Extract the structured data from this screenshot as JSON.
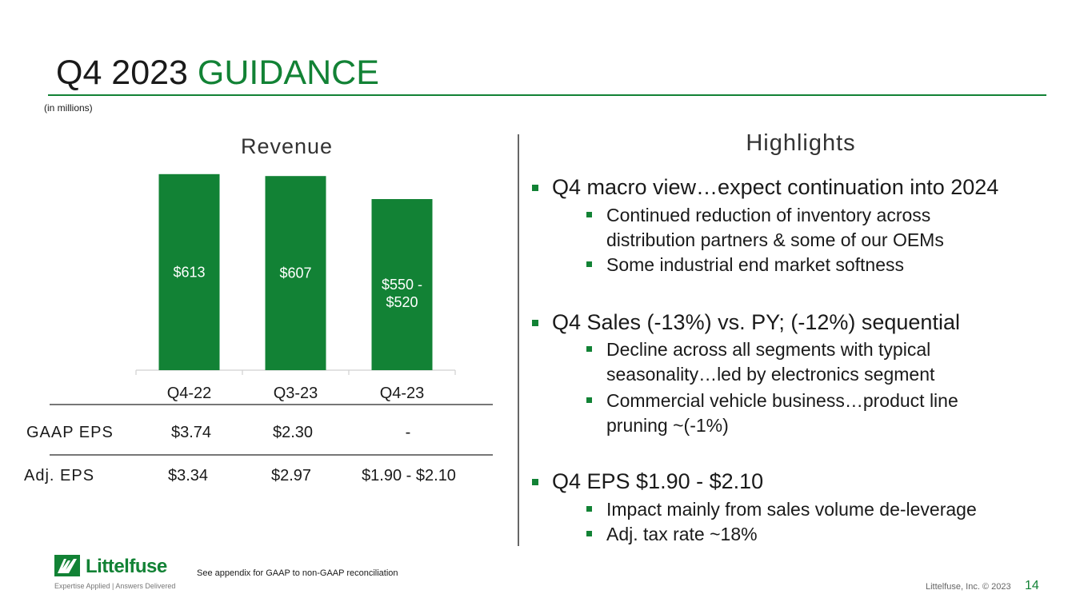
{
  "title": {
    "part1": "Q4 2023 ",
    "part2": "GUIDANCE"
  },
  "units_note": "(in millions)",
  "colors": {
    "accent": "#128235",
    "text": "#1a1a1a"
  },
  "chart_data": {
    "type": "bar",
    "title": "Revenue",
    "categories": [
      "Q4-22",
      "Q3-23",
      "Q4-23"
    ],
    "values": [
      613,
      607,
      535
    ],
    "data_labels": [
      "$613",
      "$607",
      "$550 -\n$520"
    ],
    "ylim": [
      0,
      700
    ],
    "xlabel": "",
    "ylabel": ""
  },
  "eps_table": {
    "rows": [
      {
        "label": "GAAP EPS",
        "values": [
          "$3.74",
          "$2.30",
          "-"
        ]
      },
      {
        "label": "Adj. EPS",
        "values": [
          "$3.34",
          "$2.97",
          "$1.90 - $2.10"
        ]
      }
    ]
  },
  "highlights": {
    "title": "Highlights",
    "sections": [
      {
        "text": "Q4 macro view…expect continuation into 2024",
        "sub": [
          "Continued reduction of inventory across",
          "distribution partners & some of our OEMs",
          "Some industrial end market softness"
        ]
      },
      {
        "text": "Q4 Sales (-13%) vs. PY; (-12%) sequential",
        "sub": [
          "Decline across all segments with typical",
          "seasonality…led by electronics segment",
          "Commercial vehicle business…product line",
          "pruning ~(-1%)"
        ]
      },
      {
        "text": "Q4 EPS $1.90 - $2.10",
        "sub": [
          "Impact mainly from sales volume de-leverage",
          "Adj. tax rate ~18%"
        ]
      }
    ]
  },
  "footer": {
    "logo_name": "Littelfuse",
    "tagline": "Expertise Applied | Answers Delivered",
    "note": "See appendix for GAAP to non-GAAP reconciliation",
    "copyright": "Littelfuse, Inc. © 2023",
    "page": "14"
  }
}
